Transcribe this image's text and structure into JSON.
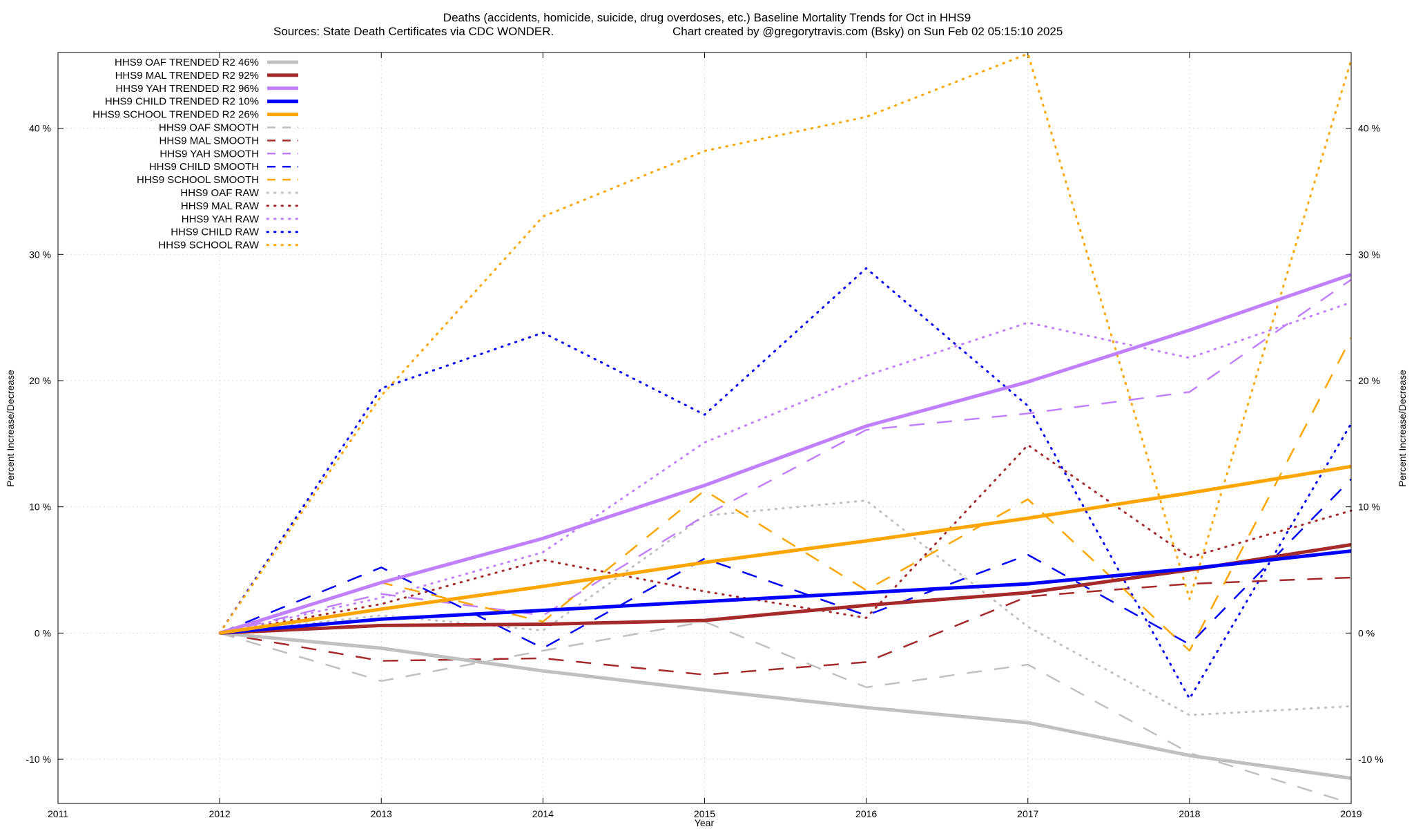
{
  "chart_data": {
    "type": "line",
    "title": "Deaths (accidents, homicide, suicide, drug overdoses, etc.)  Baseline Mortality Trends for Oct in HHS9",
    "subtitle_left": "Sources: State Death Certificates via CDC WONDER.",
    "subtitle_right": "Chart created by @gregorytravis.com (Bsky) on Sun Feb 02 05:15:10 2025",
    "xlabel": "Year",
    "ylabel": "Percent Increase/Decrease",
    "y2label": "Percent Increase/Decrease",
    "xlim": [
      2011,
      2019
    ],
    "ylim": [
      -13.5,
      46
    ],
    "x_ticks": [
      "2011",
      "2012",
      "2013",
      "2014",
      "2015",
      "2016",
      "2017",
      "2018",
      "2019"
    ],
    "y_ticks": [
      {
        "value": -10,
        "label": "-10 %"
      },
      {
        "value": 0,
        "label": "0 %"
      },
      {
        "value": 10,
        "label": "10 %"
      },
      {
        "value": 20,
        "label": "20 %"
      },
      {
        "value": 30,
        "label": "30 %"
      },
      {
        "value": 40,
        "label": "40 %"
      }
    ],
    "grid": true,
    "legend_position": "top-left",
    "x": [
      2012,
      2013,
      2014,
      2015,
      2016,
      2017,
      2018,
      2019
    ],
    "series": [
      {
        "name": "HHS9 OAF TRENDED R2  46%",
        "style": "solid",
        "color": "#c0c0c0",
        "values": [
          0,
          -1.2,
          -3.0,
          -4.5,
          -5.9,
          -7.1,
          -9.7,
          -11.5
        ]
      },
      {
        "name": "HHS9 MAL TRENDED R2  92%",
        "style": "solid",
        "color": "#a52a2a",
        "values": [
          0,
          0.6,
          0.7,
          1.0,
          2.2,
          3.2,
          5.0,
          7.0
        ]
      },
      {
        "name": "HHS9 YAH TRENDED R2  96%",
        "style": "solid",
        "color": "#c080ff",
        "values": [
          0,
          4.0,
          7.5,
          11.7,
          16.4,
          19.9,
          24.0,
          28.4
        ]
      },
      {
        "name": "HHS9 CHILD TRENDED R2  10%",
        "style": "solid",
        "color": "#0000ff",
        "values": [
          0,
          1.1,
          1.8,
          2.5,
          3.2,
          3.9,
          5.1,
          6.5
        ]
      },
      {
        "name": "HHS9 SCHOOL TRENDED R2  26%",
        "style": "solid",
        "color": "#ffa500",
        "values": [
          0,
          1.9,
          3.7,
          5.6,
          7.3,
          9.1,
          11.1,
          13.2
        ]
      },
      {
        "name": "HHS9 OAF SMOOTH",
        "style": "dashed",
        "color": "#c0c0c0",
        "values": [
          0,
          -3.8,
          -1.4,
          0.9,
          -4.3,
          -2.5,
          -9.5,
          -13.5
        ]
      },
      {
        "name": "HHS9 MAL SMOOTH",
        "style": "dashed",
        "color": "#a52a2a",
        "values": [
          0,
          -2.2,
          -2.0,
          -3.3,
          -2.3,
          2.9,
          3.9,
          4.4
        ]
      },
      {
        "name": "HHS9 YAH SMOOTH",
        "style": "dashed",
        "color": "#c080ff",
        "values": [
          0,
          3.1,
          1.4,
          9.3,
          16.1,
          17.4,
          19.1,
          28.0
        ]
      },
      {
        "name": "HHS9 CHILD SMOOTH",
        "style": "dashed",
        "color": "#0000ff",
        "values": [
          0,
          5.2,
          -1.2,
          5.9,
          1.4,
          6.2,
          -0.9,
          12.2
        ]
      },
      {
        "name": "HHS9 SCHOOL SMOOTH",
        "style": "dashed",
        "color": "#ffa500",
        "values": [
          0,
          4.0,
          0.9,
          11.3,
          3.4,
          10.6,
          -1.4,
          23.4
        ]
      },
      {
        "name": "HHS9 OAF RAW",
        "style": "dotted",
        "color": "#c0c0c0",
        "values": [
          0,
          1.4,
          0.2,
          9.3,
          10.5,
          0.5,
          -6.5,
          -5.8
        ]
      },
      {
        "name": "HHS9 MAL RAW",
        "style": "dotted",
        "color": "#a52a2a",
        "values": [
          0,
          2.3,
          5.8,
          3.3,
          1.2,
          14.9,
          6.0,
          9.7
        ]
      },
      {
        "name": "HHS9 YAH RAW",
        "style": "dotted",
        "color": "#c080ff",
        "values": [
          0,
          2.8,
          6.4,
          15.1,
          20.4,
          24.6,
          21.8,
          26.2
        ]
      },
      {
        "name": "HHS9 CHILD RAW",
        "style": "dotted",
        "color": "#0000ff",
        "values": [
          0,
          19.4,
          23.8,
          17.3,
          28.9,
          18.0,
          -5.2,
          16.6
        ]
      },
      {
        "name": "HHS9 SCHOOL RAW",
        "style": "dotted",
        "color": "#ffa500",
        "values": [
          0,
          18.8,
          33.0,
          38.2,
          40.9,
          45.9,
          2.7,
          45.4
        ]
      }
    ]
  }
}
